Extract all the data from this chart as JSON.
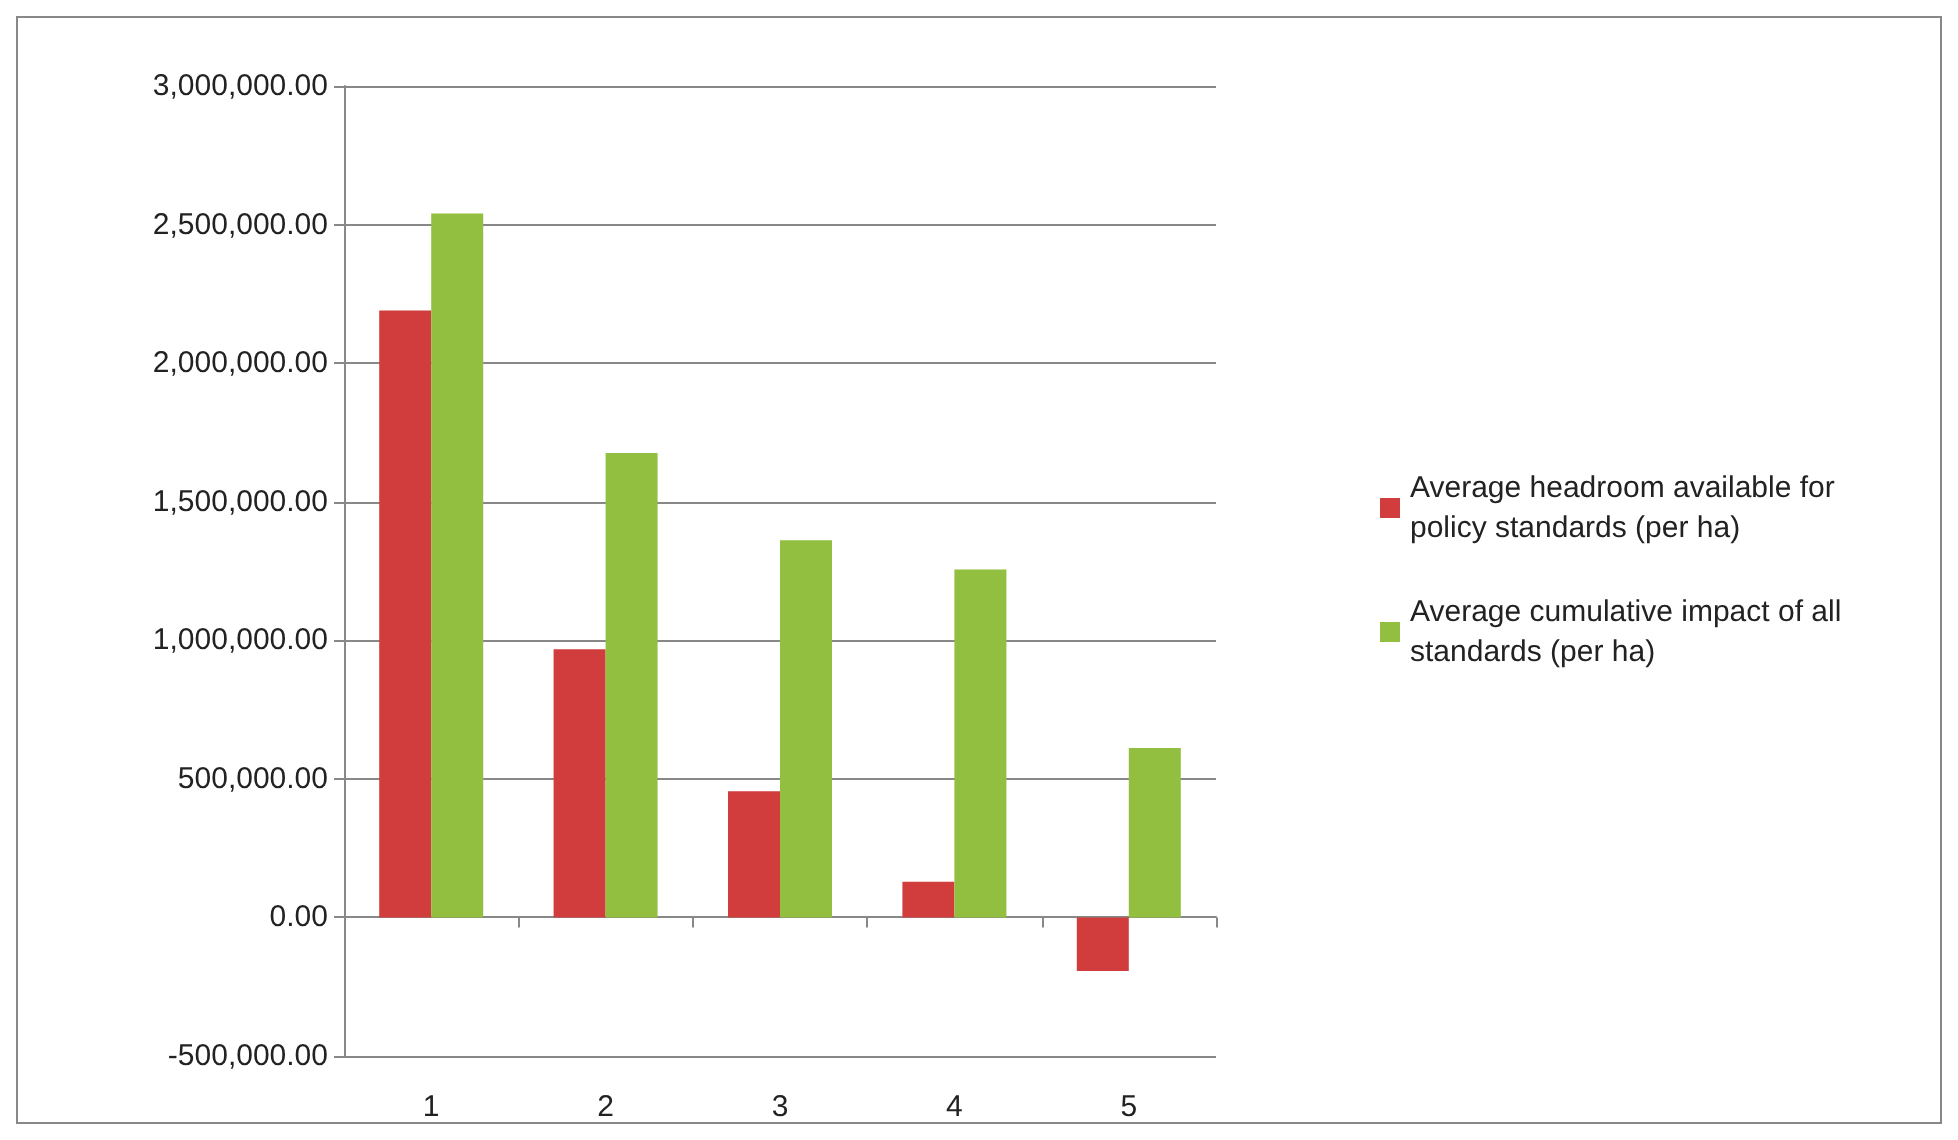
{
  "chart_data": {
    "type": "bar",
    "categories": [
      "1",
      "2",
      "3",
      "4",
      "5"
    ],
    "series": [
      {
        "name": "Average headroom available for policy standards (per ha)",
        "color": "#d13c3c",
        "values": [
          2190000,
          968000,
          455000,
          129000,
          -193000
        ]
      },
      {
        "name": "Average cumulative impact of all standards (per ha)",
        "color": "#92bf3f",
        "values": [
          2540000,
          1676000,
          1361000,
          1255000,
          611000
        ]
      }
    ],
    "ylim": [
      -500000,
      3000000
    ],
    "yticks": [
      {
        "value": -500000,
        "label": "-500,000.00"
      },
      {
        "value": 0,
        "label": "0.00"
      },
      {
        "value": 500000,
        "label": "500,000.00"
      },
      {
        "value": 1000000,
        "label": "1,000,000.00"
      },
      {
        "value": 1500000,
        "label": "1,500,000.00"
      },
      {
        "value": 2000000,
        "label": "2,000,000.00"
      },
      {
        "value": 2500000,
        "label": "2,500,000.00"
      },
      {
        "value": 3000000,
        "label": "3,000,000.00"
      }
    ],
    "grid": "y",
    "legend": "right"
  }
}
